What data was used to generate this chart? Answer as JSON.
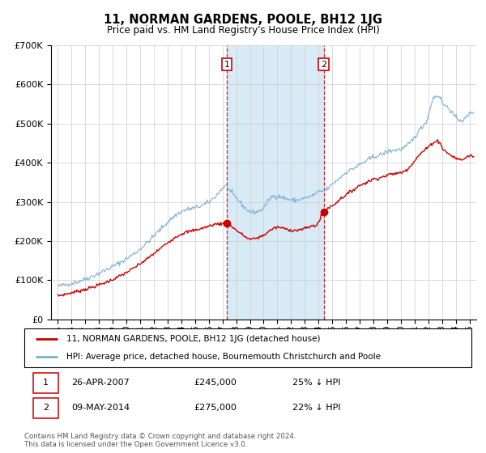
{
  "title": "11, NORMAN GARDENS, POOLE, BH12 1JG",
  "subtitle": "Price paid vs. HM Land Registry's House Price Index (HPI)",
  "legend_line1": "11, NORMAN GARDENS, POOLE, BH12 1JG (detached house)",
  "legend_line2": "HPI: Average price, detached house, Bournemouth Christchurch and Poole",
  "footnote": "Contains HM Land Registry data © Crown copyright and database right 2024.\nThis data is licensed under the Open Government Licence v3.0.",
  "annotation1_date": "26-APR-2007",
  "annotation1_price": "£245,000",
  "annotation1_hpi": "25% ↓ HPI",
  "annotation2_date": "09-MAY-2014",
  "annotation2_price": "£275,000",
  "annotation2_hpi": "22% ↓ HPI",
  "red_color": "#cc0000",
  "blue_color": "#7ab0d4",
  "shade_color": "#d8eaf5",
  "background_color": "#ffffff",
  "grid_color": "#cccccc",
  "point1_x": 2007.32,
  "point1_y": 245000,
  "point2_x": 2014.37,
  "point2_y": 275000,
  "ylim": [
    0,
    700000
  ],
  "xlim_start": 1994.5,
  "xlim_end": 2025.5
}
